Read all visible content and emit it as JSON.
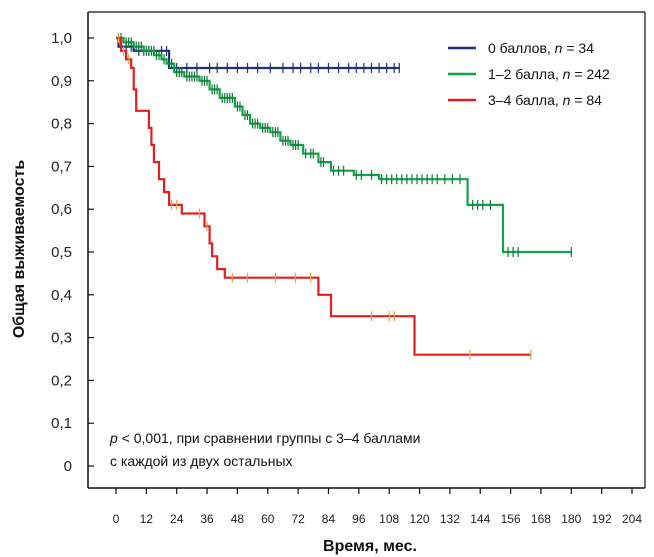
{
  "chart_data": {
    "type": "line",
    "xlabel": "Время, мес.",
    "ylabel": "Общая выживаемость",
    "xlim": [
      0,
      204
    ],
    "ylim": [
      0,
      1.0
    ],
    "x_ticks": [
      "0",
      "12",
      "24",
      "36",
      "48",
      "60",
      "72",
      "84",
      "96",
      "108",
      "120",
      "132",
      "144",
      "156",
      "168",
      "180",
      "192",
      "204"
    ],
    "y_ticks": [
      "0",
      "0,1",
      "0,2",
      "0,3",
      "0,4",
      "0,5",
      "0,6",
      "0,7",
      "0,8",
      "0,9",
      "1,0"
    ],
    "legend_position": "top-right",
    "annotation": {
      "italic": "p",
      "line1": " < 0,001, при сравнении группы с 3–4 баллами",
      "line2": "с каждой из двух остальных"
    },
    "series": [
      {
        "name_prefix": "0 баллов, ",
        "name_n": "n",
        "name_suffix": " = 34",
        "color": "#1f2f7a",
        "censor_color": "#1f2f7a",
        "points": [
          [
            0,
            1.0
          ],
          [
            1,
            0.98
          ],
          [
            7,
            0.97
          ],
          [
            20,
            0.97
          ],
          [
            21,
            0.93
          ],
          [
            112,
            0.93
          ]
        ],
        "censored": [
          2,
          4,
          6,
          9,
          11,
          13,
          15,
          18,
          20,
          24,
          28,
          32,
          37,
          40,
          44,
          48,
          52,
          56,
          61,
          66,
          70,
          73,
          77,
          80,
          84,
          88,
          92,
          95,
          98,
          101,
          104,
          107,
          110,
          112
        ]
      },
      {
        "name_prefix": "1–2 балла, ",
        "name_n": "n",
        "name_suffix": " = 242",
        "color": "#14a04a",
        "censor_color": "#0f7a36",
        "points": [
          [
            0,
            1.0
          ],
          [
            3,
            0.99
          ],
          [
            7,
            0.98
          ],
          [
            11,
            0.97
          ],
          [
            15,
            0.96
          ],
          [
            18,
            0.95
          ],
          [
            20,
            0.94
          ],
          [
            23,
            0.92
          ],
          [
            27,
            0.91
          ],
          [
            33,
            0.9
          ],
          [
            37,
            0.88
          ],
          [
            41,
            0.86
          ],
          [
            47,
            0.84
          ],
          [
            50,
            0.82
          ],
          [
            53,
            0.8
          ],
          [
            57,
            0.79
          ],
          [
            61,
            0.78
          ],
          [
            65,
            0.76
          ],
          [
            69,
            0.75
          ],
          [
            74,
            0.73
          ],
          [
            80,
            0.71
          ],
          [
            85,
            0.69
          ],
          [
            94,
            0.68
          ],
          [
            100,
            0.68
          ],
          [
            104,
            0.67
          ],
          [
            138,
            0.67
          ],
          [
            139,
            0.61
          ],
          [
            152,
            0.61
          ],
          [
            153,
            0.5
          ],
          [
            180,
            0.5
          ]
        ],
        "censored": [
          1,
          2,
          4,
          5,
          6,
          8,
          9,
          10,
          12,
          13,
          14,
          16,
          17,
          19,
          21,
          22,
          24,
          25,
          26,
          28,
          29,
          30,
          31,
          32,
          34,
          35,
          36,
          38,
          39,
          40,
          42,
          43,
          44,
          45,
          46,
          48,
          49,
          51,
          52,
          54,
          55,
          56,
          58,
          59,
          60,
          62,
          63,
          64,
          66,
          67,
          68,
          70,
          71,
          72,
          75,
          77,
          78,
          81,
          82,
          86,
          88,
          90,
          95,
          97,
          101,
          105,
          107,
          109,
          111,
          113,
          115,
          117,
          119,
          121,
          123,
          125,
          127,
          130,
          133,
          136,
          141,
          143,
          145,
          148,
          155,
          157,
          159,
          180
        ]
      },
      {
        "name_prefix": "3–4 балла, ",
        "name_n": "n",
        "name_suffix": " = 84",
        "color": "#e02020",
        "censor_color": "#e8a040",
        "points": [
          [
            0,
            1.0
          ],
          [
            2,
            0.97
          ],
          [
            4,
            0.95
          ],
          [
            6,
            0.93
          ],
          [
            7,
            0.88
          ],
          [
            8,
            0.83
          ],
          [
            13,
            0.79
          ],
          [
            14,
            0.75
          ],
          [
            15,
            0.71
          ],
          [
            17,
            0.67
          ],
          [
            19,
            0.64
          ],
          [
            21,
            0.61
          ],
          [
            26,
            0.59
          ],
          [
            35,
            0.56
          ],
          [
            37,
            0.52
          ],
          [
            38,
            0.49
          ],
          [
            40,
            0.46
          ],
          [
            43,
            0.44
          ],
          [
            79,
            0.44
          ],
          [
            80,
            0.4
          ],
          [
            85,
            0.35
          ],
          [
            117,
            0.35
          ],
          [
            118,
            0.26
          ],
          [
            164,
            0.26
          ]
        ],
        "censored": [
          1,
          3,
          5,
          22,
          24,
          33,
          36,
          46,
          52,
          63,
          71,
          77,
          101,
          108,
          110,
          140,
          164
        ]
      }
    ]
  }
}
